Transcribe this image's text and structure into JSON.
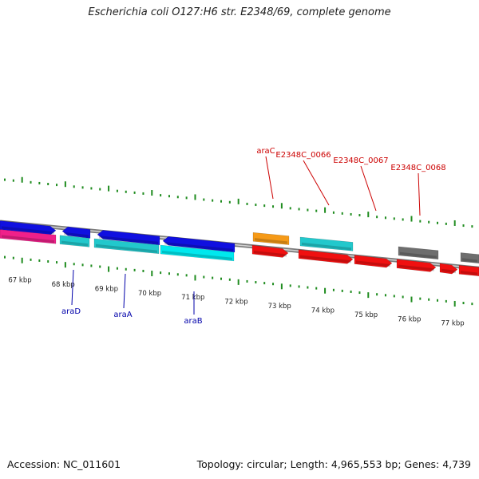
{
  "title": "Escherichia coli O127:H6 str. E2348/69, complete genome",
  "footer": {
    "accession": "Accession: NC_011601",
    "summary": "Topology: circular; Length: 4,965,553 bp; Genes: 4,739"
  },
  "colors": {
    "blue": "#1010e0",
    "cyan": "#22c8cc",
    "magenta": "#f0208a",
    "orange": "#f59a18",
    "red": "#f01010",
    "gray": "#6e6e6e",
    "tick_green": "#1f8c1f",
    "label_red": "#cc0000",
    "label_blue": "#0000aa",
    "backbone": "#8a8a8a"
  },
  "scale": {
    "unit": "kbp",
    "major_ticks": [
      {
        "label": "67 kbp"
      },
      {
        "label": "68 kbp"
      },
      {
        "label": "69 kbp"
      },
      {
        "label": "70 kbp"
      },
      {
        "label": "71 kbp"
      },
      {
        "label": "72 kbp"
      },
      {
        "label": "73 kbp"
      },
      {
        "label": "74 kbp"
      },
      {
        "label": "75 kbp"
      },
      {
        "label": "76 kbp"
      },
      {
        "label": "77 kbp"
      }
    ]
  },
  "genes": {
    "labeled_top": [
      {
        "name": "araC"
      },
      {
        "name": "E2348C_0066"
      },
      {
        "name": "E2348C_0067"
      },
      {
        "name": "E2348C_0068"
      }
    ],
    "labeled_bottom": [
      {
        "name": "araD"
      },
      {
        "name": "araA"
      },
      {
        "name": "araB"
      }
    ]
  }
}
